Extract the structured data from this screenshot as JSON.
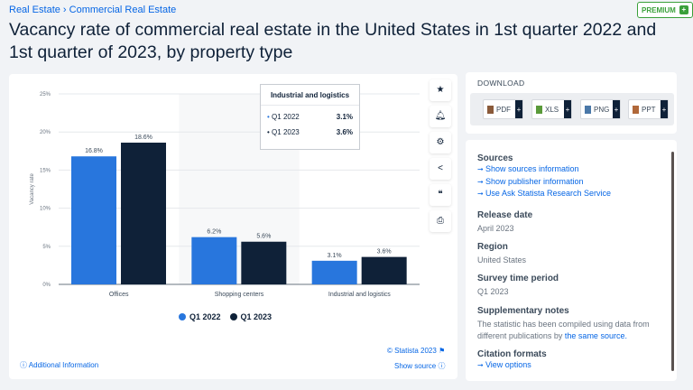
{
  "breadcrumb": [
    "Real Estate",
    "Commercial Real Estate"
  ],
  "premium_label": "PREMIUM",
  "title": "Vacancy rate of commercial real estate in the United States in 1st quarter 2022 and 1st quarter of 2023, by property type",
  "toolbar": [
    "star-icon",
    "bell-icon",
    "gear-icon",
    "share-icon",
    "quote-icon",
    "print-icon"
  ],
  "chart_data": {
    "type": "bar",
    "categories": [
      "Offices",
      "Shopping centers",
      "Industrial and logistics"
    ],
    "series": [
      {
        "name": "Q1 2022",
        "values": [
          16.8,
          6.2,
          3.1
        ],
        "color": "#2876dd"
      },
      {
        "name": "Q1 2023",
        "values": [
          18.6,
          5.6,
          3.6
        ],
        "color": "#0f2138"
      }
    ],
    "data_labels": [
      [
        "16.8%",
        "6.2%",
        "3.1%"
      ],
      [
        "18.6%",
        "5.6%",
        "3.6%"
      ]
    ],
    "ylabel": "Vacancy rate",
    "ylim": [
      0,
      25
    ],
    "yticks": [
      "0%",
      "5%",
      "10%",
      "15%",
      "20%",
      "25%"
    ],
    "grid": true,
    "legend": "bottom"
  },
  "tooltip": {
    "title": "Industrial and logistics",
    "rows": [
      {
        "label": "Q1 2022",
        "value": "3.1%"
      },
      {
        "label": "Q1 2023",
        "value": "3.6%"
      }
    ]
  },
  "footer": {
    "copyright": "© Statista 2023",
    "additional": "Additional Information",
    "show_source": "Show source"
  },
  "download": {
    "title": "DOWNLOAD",
    "buttons": [
      "PDF",
      "XLS",
      "PNG",
      "PPT"
    ]
  },
  "info": {
    "sources_label": "Sources",
    "sources_links": [
      "Show sources information",
      "Show publisher information",
      "Use Ask Statista Research Service"
    ],
    "release_label": "Release date",
    "release": "April 2023",
    "region_label": "Region",
    "region": "United States",
    "period_label": "Survey time period",
    "period": "Q1 2023",
    "notes_label": "Supplementary notes",
    "notes": "The statistic has been compiled using data from different publications by",
    "notes_link": "the same source.",
    "citation_label": "Citation formats",
    "citation_link": "View options"
  }
}
